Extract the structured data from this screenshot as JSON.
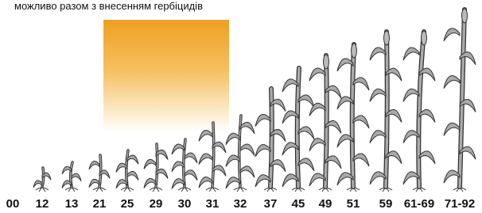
{
  "caption": "можливо разом з внесенням гербіцидів",
  "stages": [
    "00",
    "12",
    "13",
    "21",
    "25",
    "29",
    "30",
    "31",
    "32",
    "37",
    "45",
    "49",
    "51",
    "59",
    "61-69",
    "71-92"
  ]
}
